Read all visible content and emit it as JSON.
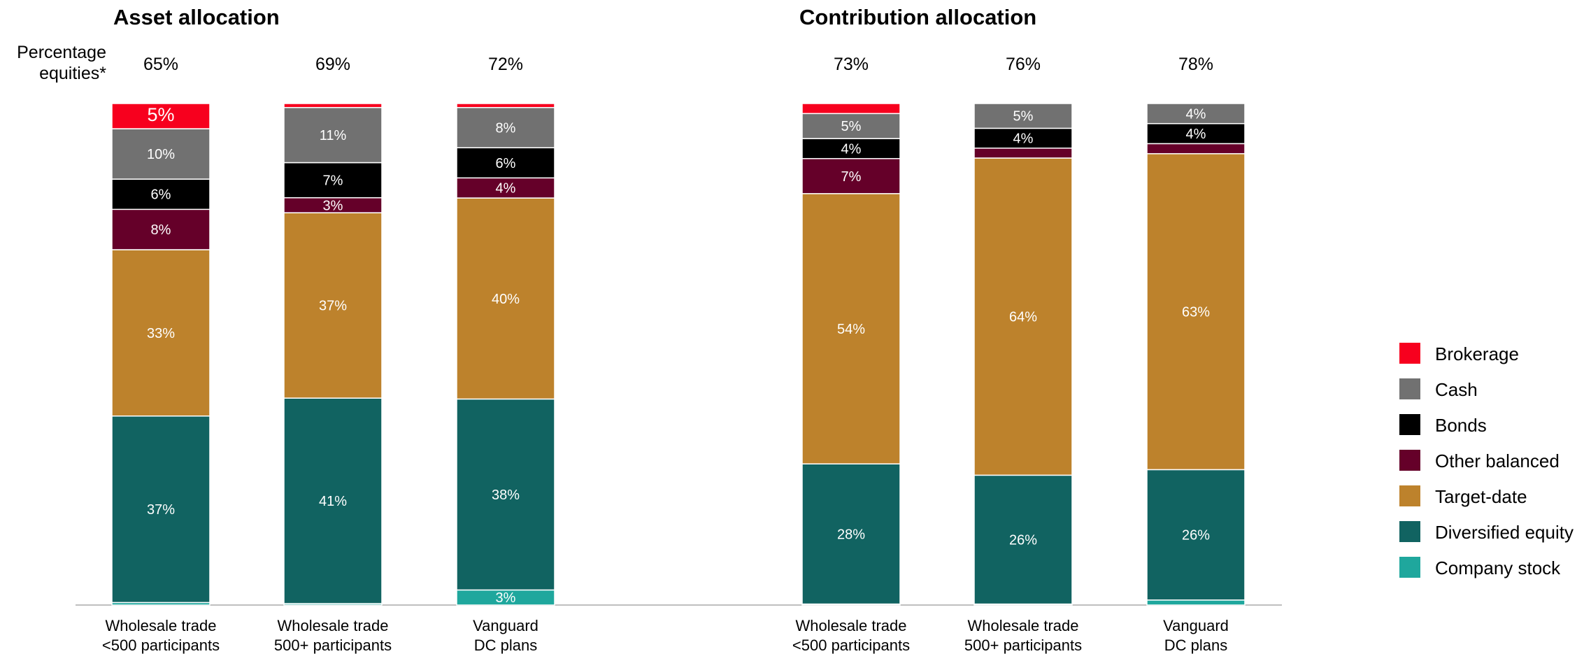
{
  "chart_data": {
    "type": "bar",
    "stacked": true,
    "percentage_equities_label": [
      "Percentage",
      "equities*"
    ],
    "series": [
      {
        "name": "Company stock",
        "color": "#1fa79d"
      },
      {
        "name": "Diversified equity",
        "color": "#116361"
      },
      {
        "name": "Target-date",
        "color": "#bd822c"
      },
      {
        "name": "Other balanced",
        "color": "#650029"
      },
      {
        "name": "Bonds",
        "color": "#000000"
      },
      {
        "name": "Cash",
        "color": "#717171"
      },
      {
        "name": "Brokerage",
        "color": "#f7001e"
      }
    ],
    "panels": [
      {
        "title": "Asset allocation",
        "groups": [
          {
            "category": [
              "Wholesale trade",
              "<500 participants"
            ],
            "equities": "65%",
            "values": [
              0.5,
              37,
              33,
              8,
              6,
              10,
              5
            ],
            "labels": [
              "",
              "37%",
              "33%",
              "8%",
              "6%",
              "10%",
              "5%"
            ]
          },
          {
            "category": [
              "Wholesale trade",
              "500+ participants"
            ],
            "equities": "69%",
            "values": [
              0.3,
              41,
              37,
              3,
              7,
              11,
              0.8
            ],
            "labels": [
              "",
              "41%",
              "37%",
              "3%",
              "7%",
              "11%",
              ""
            ]
          },
          {
            "category": [
              "Vanguard",
              "DC plans"
            ],
            "equities": "72%",
            "values": [
              3,
              38,
              40,
              4,
              6,
              8,
              0.8
            ],
            "labels": [
              "3%",
              "38%",
              "40%",
              "4%",
              "6%",
              "8%",
              ""
            ]
          }
        ]
      },
      {
        "title": "Contribution allocation",
        "groups": [
          {
            "category": [
              "Wholesale trade",
              "<500 participants"
            ],
            "equities": "73%",
            "values": [
              0.2,
              28,
              54,
              7,
              4,
              5,
              2
            ],
            "labels": [
              "",
              "28%",
              "54%",
              "7%",
              "4%",
              "5%",
              ""
            ]
          },
          {
            "category": [
              "Wholesale trade",
              "500+ participants"
            ],
            "equities": "76%",
            "values": [
              0.2,
              26,
              64,
              2,
              4,
              5,
              0
            ],
            "labels": [
              "",
              "26%",
              "64%",
              "",
              "4%",
              "5%",
              ""
            ]
          },
          {
            "category": [
              "Vanguard",
              "DC plans"
            ],
            "equities": "78%",
            "values": [
              1,
              26,
              63,
              2,
              4,
              4,
              0
            ],
            "labels": [
              "",
              "26%",
              "63%",
              "",
              "4%",
              "4%",
              ""
            ]
          }
        ]
      }
    ],
    "legend_order": [
      "Brokerage",
      "Cash",
      "Bonds",
      "Other balanced",
      "Target-date",
      "Diversified equity",
      "Company stock"
    ],
    "legend_position": "right"
  }
}
